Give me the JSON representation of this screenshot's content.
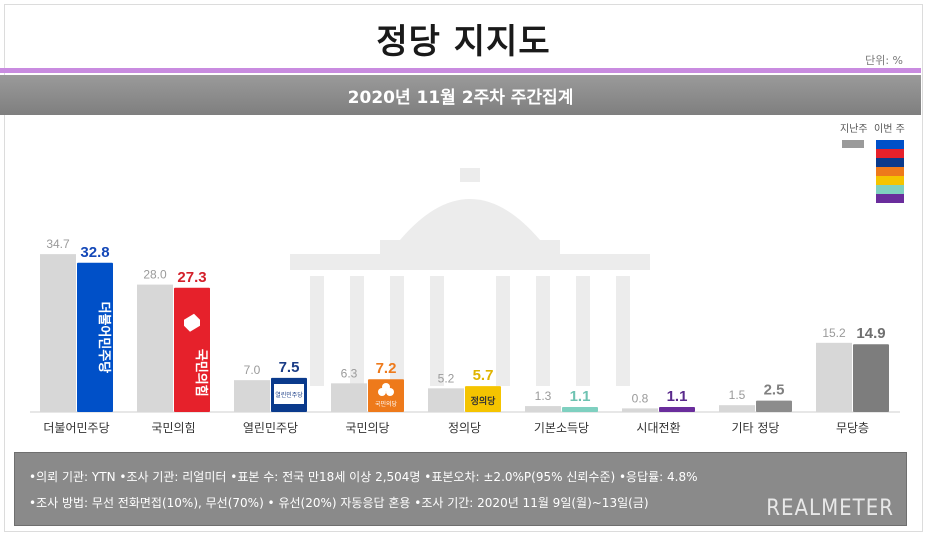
{
  "header": {
    "title": "정당 지지도",
    "unit": "단위: %",
    "subtitle": "2020년 11월 2주차 주간집계"
  },
  "legend": {
    "previous_label": "지난주",
    "current_label": "이번 주"
  },
  "chart_data": {
    "type": "bar",
    "title": "정당 지지도",
    "subtitle": "2020년 11월 2주차 주간집계",
    "ylim": [
      0,
      40
    ],
    "categories": [
      "더불어민주당",
      "국민의힘",
      "열린민주당",
      "국민의당",
      "정의당",
      "기본소득당",
      "시대전환",
      "기타 정당",
      "무당층"
    ],
    "series": [
      {
        "name": "지난주",
        "values": [
          34.7,
          28.0,
          7.0,
          6.3,
          5.2,
          1.3,
          0.8,
          1.5,
          15.2
        ],
        "color": "#d7d7d7"
      },
      {
        "name": "이번 주",
        "values": [
          32.8,
          27.3,
          7.5,
          7.2,
          5.7,
          1.1,
          1.1,
          2.5,
          14.9
        ],
        "colors": [
          "#0050c8",
          "#e6212b",
          "#0a3a8c",
          "#ee7a1b",
          "#f5c400",
          "#7fd0c0",
          "#6a2d9c",
          "#8c8c8c",
          "#7d7d7d"
        ],
        "label_colors": [
          "#1448b8",
          "#d4202a",
          "#1a3c86",
          "#ee7a1b",
          "#e0b400",
          "#6fc3b2",
          "#5a2a8c",
          "#808080",
          "#707070"
        ]
      }
    ],
    "party_logos": [
      "더불어민주당",
      "국민의힘",
      "열린민주당",
      "국민의당",
      "정의당"
    ]
  },
  "footer": {
    "line1": "•의뢰 기관: YTN •조사 기관: 리얼미터 •표본 수: 전국 만18세 이상 2,504명 •표본오차: ±2.0%P(95% 신뢰수준) •응답률: 4.8%",
    "line2": "•조사 방법: 무선 전화면접(10%), 무선(70%) • 유선(20%) 자동응답 혼용 •조사 기간: 2020년 11월 9일(월)~13일(금)",
    "brand": "REALMETER"
  }
}
